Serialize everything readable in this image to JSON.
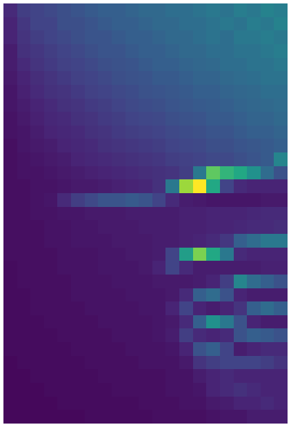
{
  "chart_data": {
    "type": "heatmap",
    "color": "viridis",
    "tick_labels": false,
    "zlim": [
      0,
      1
    ],
    "cells": [
      [
        0.12,
        0.18,
        0.2,
        0.22,
        0.24,
        0.26,
        0.28,
        0.3,
        0.3,
        0.32,
        0.34,
        0.34,
        0.36,
        0.36,
        0.38,
        0.4,
        0.38,
        0.42,
        0.4,
        0.44,
        0.42
      ],
      [
        0.1,
        0.16,
        0.2,
        0.2,
        0.24,
        0.24,
        0.26,
        0.28,
        0.3,
        0.3,
        0.32,
        0.34,
        0.34,
        0.36,
        0.36,
        0.38,
        0.4,
        0.38,
        0.42,
        0.4,
        0.44
      ],
      [
        0.1,
        0.15,
        0.18,
        0.2,
        0.22,
        0.24,
        0.26,
        0.26,
        0.28,
        0.3,
        0.3,
        0.32,
        0.34,
        0.34,
        0.36,
        0.38,
        0.36,
        0.4,
        0.4,
        0.42,
        0.4
      ],
      [
        0.08,
        0.14,
        0.16,
        0.18,
        0.2,
        0.22,
        0.24,
        0.26,
        0.26,
        0.28,
        0.3,
        0.3,
        0.32,
        0.34,
        0.34,
        0.36,
        0.36,
        0.38,
        0.38,
        0.4,
        0.42
      ],
      [
        0.08,
        0.12,
        0.15,
        0.17,
        0.19,
        0.2,
        0.22,
        0.24,
        0.25,
        0.26,
        0.28,
        0.3,
        0.3,
        0.32,
        0.33,
        0.34,
        0.36,
        0.36,
        0.38,
        0.38,
        0.4
      ],
      [
        0.07,
        0.1,
        0.13,
        0.15,
        0.17,
        0.19,
        0.2,
        0.22,
        0.24,
        0.25,
        0.26,
        0.28,
        0.28,
        0.3,
        0.32,
        0.32,
        0.34,
        0.35,
        0.36,
        0.38,
        0.38
      ],
      [
        0.06,
        0.09,
        0.12,
        0.14,
        0.15,
        0.17,
        0.19,
        0.2,
        0.22,
        0.23,
        0.25,
        0.26,
        0.27,
        0.28,
        0.3,
        0.3,
        0.32,
        0.33,
        0.34,
        0.36,
        0.36
      ],
      [
        0.06,
        0.08,
        0.1,
        0.12,
        0.14,
        0.15,
        0.17,
        0.18,
        0.2,
        0.22,
        0.23,
        0.24,
        0.26,
        0.27,
        0.28,
        0.29,
        0.3,
        0.32,
        0.33,
        0.34,
        0.35
      ],
      [
        0.05,
        0.07,
        0.09,
        0.11,
        0.12,
        0.14,
        0.15,
        0.17,
        0.18,
        0.2,
        0.21,
        0.22,
        0.24,
        0.25,
        0.26,
        0.28,
        0.28,
        0.3,
        0.32,
        0.32,
        0.34
      ],
      [
        0.05,
        0.06,
        0.08,
        0.1,
        0.11,
        0.12,
        0.14,
        0.15,
        0.17,
        0.18,
        0.19,
        0.2,
        0.22,
        0.23,
        0.24,
        0.26,
        0.26,
        0.28,
        0.3,
        0.3,
        0.32
      ],
      [
        0.04,
        0.06,
        0.07,
        0.08,
        0.1,
        0.11,
        0.12,
        0.14,
        0.15,
        0.16,
        0.17,
        0.18,
        0.2,
        0.21,
        0.22,
        0.24,
        0.24,
        0.26,
        0.27,
        0.28,
        0.3
      ],
      [
        0.04,
        0.05,
        0.06,
        0.07,
        0.08,
        0.1,
        0.11,
        0.12,
        0.13,
        0.14,
        0.15,
        0.16,
        0.18,
        0.19,
        0.2,
        0.22,
        0.22,
        0.24,
        0.26,
        0.28,
        0.45
      ],
      [
        0.04,
        0.05,
        0.05,
        0.06,
        0.07,
        0.08,
        0.09,
        0.1,
        0.11,
        0.12,
        0.13,
        0.14,
        0.15,
        0.18,
        0.4,
        0.75,
        0.65,
        0.6,
        0.5,
        0.35,
        0.25
      ],
      [
        0.04,
        0.04,
        0.05,
        0.05,
        0.06,
        0.07,
        0.07,
        0.08,
        0.09,
        0.1,
        0.11,
        0.14,
        0.4,
        0.85,
        1.0,
        0.6,
        0.2,
        0.12,
        0.1,
        0.1,
        0.1
      ],
      [
        0.04,
        0.04,
        0.05,
        0.06,
        0.12,
        0.18,
        0.22,
        0.26,
        0.26,
        0.28,
        0.26,
        0.2,
        0.12,
        0.08,
        0.07,
        0.06,
        0.06,
        0.06,
        0.06,
        0.07,
        0.07
      ],
      [
        0.04,
        0.04,
        0.05,
        0.05,
        0.06,
        0.06,
        0.07,
        0.07,
        0.07,
        0.08,
        0.08,
        0.08,
        0.08,
        0.09,
        0.09,
        0.1,
        0.1,
        0.1,
        0.11,
        0.12,
        0.12
      ],
      [
        0.04,
        0.04,
        0.04,
        0.05,
        0.05,
        0.06,
        0.06,
        0.07,
        0.07,
        0.07,
        0.08,
        0.08,
        0.08,
        0.09,
        0.09,
        0.1,
        0.1,
        0.11,
        0.12,
        0.12,
        0.13
      ],
      [
        0.04,
        0.04,
        0.04,
        0.05,
        0.05,
        0.06,
        0.06,
        0.06,
        0.07,
        0.07,
        0.07,
        0.08,
        0.08,
        0.09,
        0.1,
        0.12,
        0.16,
        0.3,
        0.35,
        0.4,
        0.4
      ],
      [
        0.04,
        0.04,
        0.04,
        0.04,
        0.05,
        0.05,
        0.05,
        0.06,
        0.06,
        0.07,
        0.07,
        0.08,
        0.2,
        0.55,
        0.8,
        0.6,
        0.4,
        0.12,
        0.1,
        0.1,
        0.1
      ],
      [
        0.03,
        0.04,
        0.04,
        0.04,
        0.05,
        0.05,
        0.05,
        0.06,
        0.06,
        0.06,
        0.07,
        0.1,
        0.2,
        0.12,
        0.08,
        0.08,
        0.08,
        0.08,
        0.08,
        0.09,
        0.09
      ],
      [
        0.03,
        0.04,
        0.04,
        0.04,
        0.04,
        0.05,
        0.05,
        0.05,
        0.06,
        0.06,
        0.06,
        0.07,
        0.07,
        0.07,
        0.08,
        0.1,
        0.18,
        0.45,
        0.35,
        0.3,
        0.25
      ],
      [
        0.03,
        0.03,
        0.04,
        0.04,
        0.04,
        0.05,
        0.05,
        0.05,
        0.05,
        0.06,
        0.06,
        0.06,
        0.07,
        0.12,
        0.3,
        0.35,
        0.25,
        0.1,
        0.08,
        0.08,
        0.08
      ],
      [
        0.03,
        0.03,
        0.04,
        0.04,
        0.04,
        0.04,
        0.05,
        0.05,
        0.05,
        0.05,
        0.06,
        0.06,
        0.1,
        0.2,
        0.1,
        0.08,
        0.1,
        0.15,
        0.3,
        0.35,
        0.3
      ],
      [
        0.03,
        0.03,
        0.03,
        0.04,
        0.04,
        0.04,
        0.04,
        0.05,
        0.05,
        0.05,
        0.05,
        0.06,
        0.07,
        0.12,
        0.3,
        0.5,
        0.4,
        0.25,
        0.1,
        0.08,
        0.08
      ],
      [
        0.03,
        0.03,
        0.03,
        0.03,
        0.04,
        0.04,
        0.04,
        0.04,
        0.05,
        0.05,
        0.05,
        0.06,
        0.08,
        0.18,
        0.12,
        0.1,
        0.12,
        0.25,
        0.3,
        0.28,
        0.25
      ],
      [
        0.03,
        0.03,
        0.03,
        0.03,
        0.03,
        0.04,
        0.04,
        0.04,
        0.04,
        0.05,
        0.05,
        0.05,
        0.06,
        0.1,
        0.25,
        0.3,
        0.2,
        0.08,
        0.1,
        0.12,
        0.12
      ],
      [
        0.02,
        0.03,
        0.03,
        0.03,
        0.03,
        0.03,
        0.04,
        0.04,
        0.04,
        0.04,
        0.05,
        0.05,
        0.05,
        0.07,
        0.15,
        0.18,
        0.2,
        0.2,
        0.2,
        0.18,
        0.15
      ],
      [
        0.02,
        0.02,
        0.03,
        0.03,
        0.03,
        0.03,
        0.03,
        0.04,
        0.04,
        0.04,
        0.04,
        0.04,
        0.05,
        0.05,
        0.08,
        0.1,
        0.12,
        0.1,
        0.1,
        0.1,
        0.1
      ],
      [
        0.02,
        0.02,
        0.02,
        0.03,
        0.03,
        0.03,
        0.03,
        0.03,
        0.04,
        0.04,
        0.04,
        0.04,
        0.05,
        0.05,
        0.06,
        0.1,
        0.12,
        0.14,
        0.12,
        0.1,
        0.1
      ],
      [
        0.02,
        0.02,
        0.02,
        0.02,
        0.03,
        0.03,
        0.03,
        0.03,
        0.03,
        0.03,
        0.04,
        0.04,
        0.04,
        0.05,
        0.05,
        0.07,
        0.08,
        0.1,
        0.1,
        0.12,
        0.1
      ],
      [
        0.02,
        0.02,
        0.02,
        0.02,
        0.02,
        0.02,
        0.03,
        0.03,
        0.03,
        0.03,
        0.03,
        0.04,
        0.04,
        0.04,
        0.04,
        0.05,
        0.06,
        0.06,
        0.08,
        0.08,
        0.08
      ]
    ]
  }
}
